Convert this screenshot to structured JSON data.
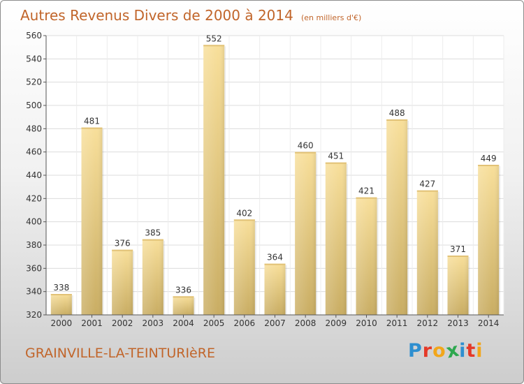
{
  "chart_data": {
    "type": "bar",
    "title": "Autres Revenus Divers de 2000 à 2014",
    "unit_note": "(en milliers d'€)",
    "categories": [
      "2000",
      "2001",
      "2002",
      "2003",
      "2004",
      "2005",
      "2006",
      "2007",
      "2008",
      "2009",
      "2010",
      "2011",
      "2012",
      "2013",
      "2014"
    ],
    "values": [
      338,
      481,
      376,
      385,
      336,
      552,
      402,
      364,
      460,
      451,
      421,
      488,
      427,
      371,
      449
    ],
    "ylim": [
      320,
      560
    ],
    "yticks": [
      320,
      340,
      360,
      380,
      400,
      420,
      440,
      460,
      480,
      500,
      520,
      540,
      560
    ],
    "grid": true,
    "bar_color": "#e8cd84",
    "text_color": "#c1652a"
  },
  "place_name": "GRAINVILLE-LA-TEINTURIèRE",
  "logo": {
    "letters": [
      "P",
      "r",
      "o",
      "x",
      "i",
      "t",
      "i"
    ],
    "colors": [
      "#2e8fd0",
      "#e53928",
      "#f2a61a",
      "#2ea84f",
      "#2e8fd0",
      "#e53928",
      "#f2a61a"
    ]
  }
}
